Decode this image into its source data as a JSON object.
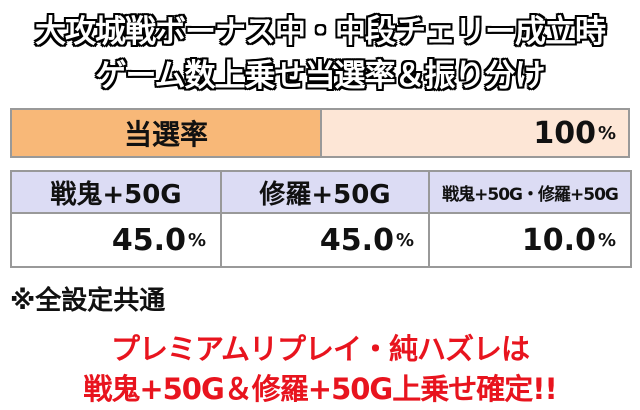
{
  "header": {
    "lines": [
      "大攻城戦ボーナス中・中段チェリー成立時",
      "ゲーム数上乗せ当選率＆振り分け"
    ]
  },
  "table": {
    "total": {
      "label": "当選率",
      "value": "100",
      "unit": "%"
    },
    "columns": [
      {
        "label": "戦鬼+50G",
        "value": "45.0",
        "unit": "%"
      },
      {
        "label": "修羅+50G",
        "value": "45.0",
        "unit": "%"
      },
      {
        "label": "戦鬼+50G・修羅+50G",
        "value": "10.0",
        "unit": "%"
      }
    ]
  },
  "note": "※全設定共通",
  "footer": {
    "lines": [
      "プレミアムリプレイ・純ハズレは",
      "戦鬼+50G＆修羅+50G上乗せ確定!!"
    ]
  }
}
